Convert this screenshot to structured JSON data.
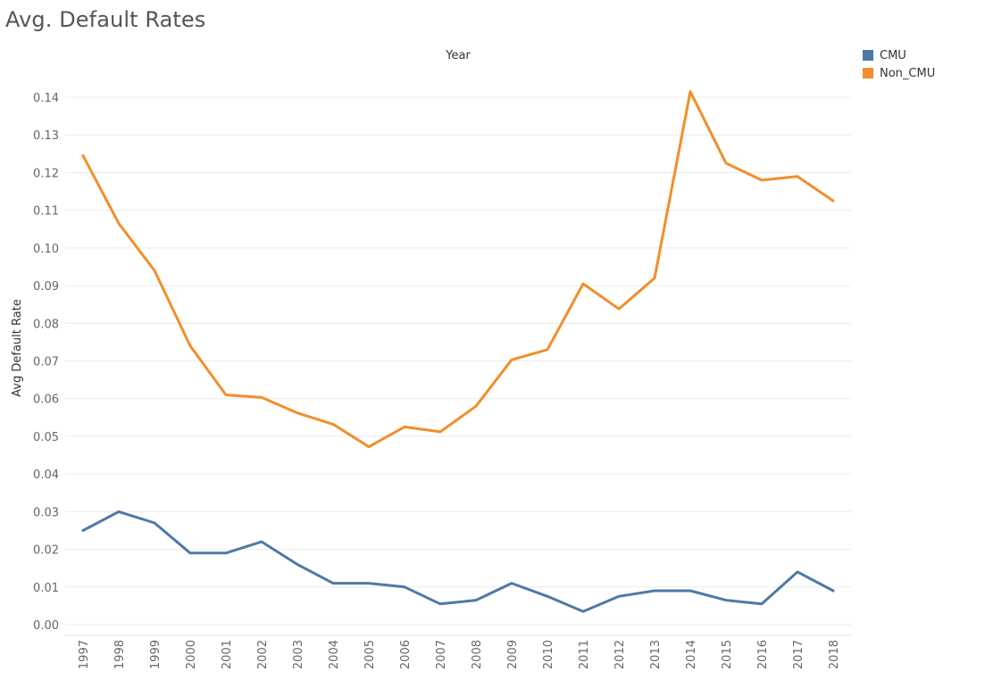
{
  "title": "Avg. Default Rates",
  "chart_data": {
    "type": "line",
    "title": "Avg. Default Rates",
    "xlabel": "Year",
    "ylabel": "Avg Default Rate",
    "x": [
      "1997",
      "1998",
      "1999",
      "2000",
      "2001",
      "2002",
      "2003",
      "2004",
      "2005",
      "2006",
      "2007",
      "2008",
      "2009",
      "2010",
      "2011",
      "2012",
      "2013",
      "2014",
      "2015",
      "2016",
      "2017",
      "2018"
    ],
    "yticks": [
      "0.00",
      "0.01",
      "0.02",
      "0.03",
      "0.04",
      "0.05",
      "0.06",
      "0.07",
      "0.08",
      "0.09",
      "0.10",
      "0.11",
      "0.12",
      "0.13",
      "0.14"
    ],
    "ylim": [
      0,
      0.14
    ],
    "grid": true,
    "legend_position": "top-right",
    "series": [
      {
        "name": "CMU",
        "color": "#4e79a7",
        "values": [
          0.025,
          0.03,
          0.027,
          0.019,
          0.019,
          0.022,
          0.016,
          0.011,
          0.011,
          0.01,
          0.0055,
          0.0065,
          0.011,
          0.0075,
          0.0035,
          0.0075,
          0.009,
          0.009,
          0.0065,
          0.0055,
          0.014,
          0.009
        ]
      },
      {
        "name": "Non_CMU",
        "color": "#f28e2b",
        "values": [
          0.1245,
          0.1065,
          0.094,
          0.074,
          0.061,
          0.0603,
          0.0562,
          0.0532,
          0.0472,
          0.0525,
          0.0512,
          0.058,
          0.0703,
          0.073,
          0.0905,
          0.0838,
          0.092,
          0.1415,
          0.1225,
          0.118,
          0.119,
          0.1125
        ]
      }
    ]
  }
}
